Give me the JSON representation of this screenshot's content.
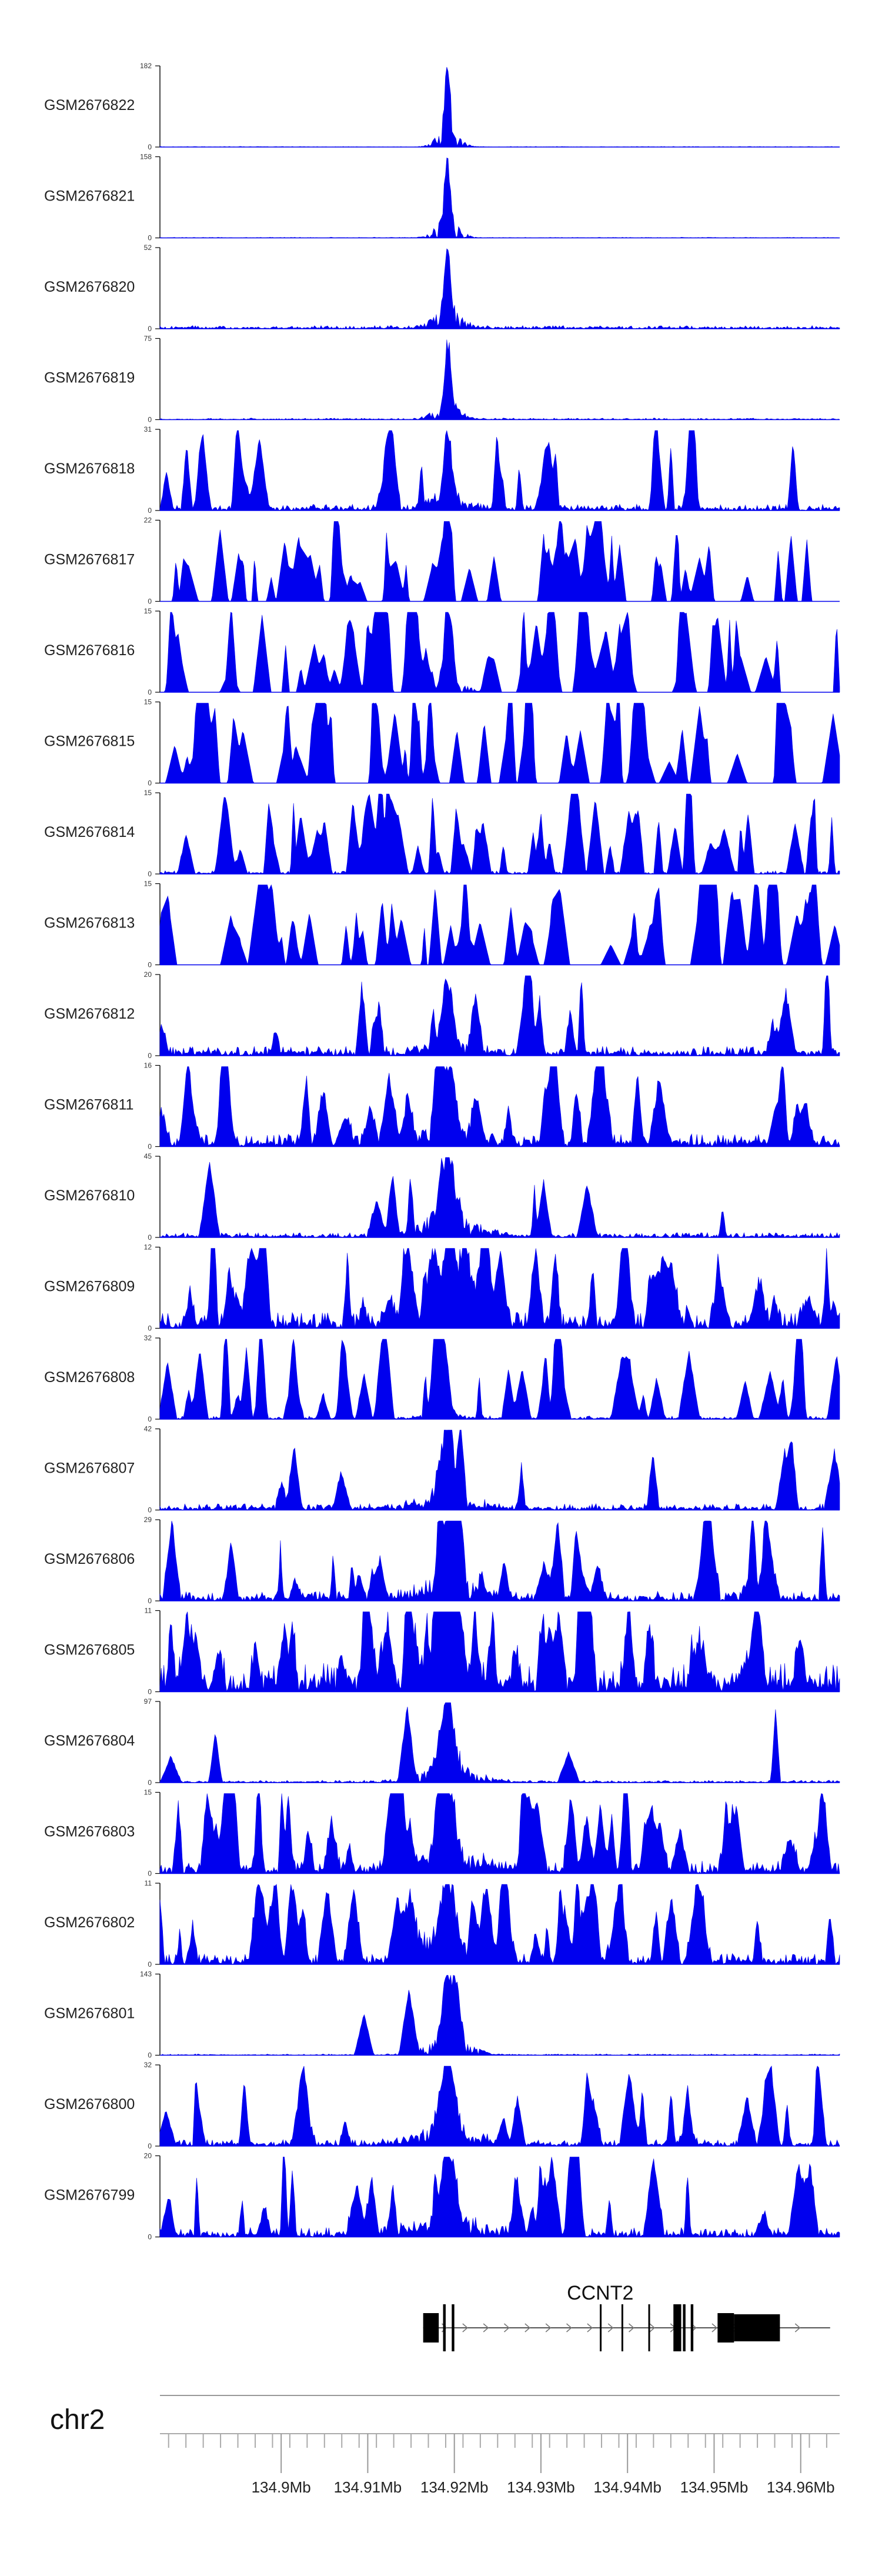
{
  "chart_data": {
    "type": "area",
    "title": "",
    "chromosome": "chr2",
    "x_range_mb": [
      134.886,
      134.9645
    ],
    "x_ticks_mb": [
      134.9,
      134.91,
      134.92,
      134.93,
      134.94,
      134.95,
      134.96
    ],
    "x_tick_labels": [
      "134.9Mb",
      "134.91Mb",
      "134.92Mb",
      "134.93Mb",
      "134.94Mb",
      "134.95Mb",
      "134.96Mb"
    ],
    "peak_center_mb": 134.9192,
    "colors": {
      "signal": "#0000ee",
      "axis": "#000000",
      "gene": "#000000"
    },
    "tracks": [
      {
        "name": "GSM2676822",
        "ymax": 182,
        "ymin": 0,
        "noise": 0.004,
        "peak": 1.0,
        "peak_width": 0.0003,
        "sparse": 0.0,
        "seed": 11
      },
      {
        "name": "GSM2676821",
        "ymax": 158,
        "ymin": 0,
        "noise": 0.004,
        "peak": 1.0,
        "peak_width": 0.00032,
        "sparse": 0.0,
        "seed": 12
      },
      {
        "name": "GSM2676820",
        "ymax": 52,
        "ymin": 0,
        "noise": 0.02,
        "peak": 0.95,
        "peak_width": 0.0004,
        "sparse": 0.0,
        "seed": 13
      },
      {
        "name": "GSM2676819",
        "ymax": 75,
        "ymin": 0,
        "noise": 0.01,
        "peak": 0.95,
        "peak_width": 0.00035,
        "sparse": 0.0,
        "seed": 14
      },
      {
        "name": "GSM2676818",
        "ymax": 31,
        "ymin": 0,
        "noise": 0.04,
        "peak": 0.9,
        "peak_width": 0.00045,
        "sparse": 0.25,
        "seed": 15
      },
      {
        "name": "GSM2676817",
        "ymax": 22,
        "ymin": 0,
        "noise": 0.0,
        "peak": 0.0,
        "peak_width": 0.0005,
        "sparse": 0.55,
        "seed": 16
      },
      {
        "name": "GSM2676816",
        "ymax": 15,
        "ymin": 0,
        "noise": 0.0,
        "peak": 0.6,
        "peak_width": 0.0005,
        "sparse": 0.6,
        "seed": 17
      },
      {
        "name": "GSM2676815",
        "ymax": 15,
        "ymin": 0,
        "noise": 0.0,
        "peak": 0.0,
        "peak_width": 0.0005,
        "sparse": 0.7,
        "seed": 18
      },
      {
        "name": "GSM2676814",
        "ymax": 15,
        "ymin": 0,
        "noise": 0.02,
        "peak": 0.0,
        "peak_width": 0.0005,
        "sparse": 0.55,
        "seed": 19
      },
      {
        "name": "GSM2676813",
        "ymax": 15,
        "ymin": 0,
        "noise": 0.0,
        "peak": 0.0,
        "peak_width": 0.0005,
        "sparse": 0.6,
        "seed": 20
      },
      {
        "name": "GSM2676812",
        "ymax": 20,
        "ymin": 0,
        "noise": 0.06,
        "peak": 0.95,
        "peak_width": 0.00055,
        "sparse": 0.2,
        "seed": 21
      },
      {
        "name": "GSM2676811",
        "ymax": 16,
        "ymin": 0,
        "noise": 0.08,
        "peak": 1.0,
        "peak_width": 0.0008,
        "sparse": 0.35,
        "seed": 22
      },
      {
        "name": "GSM2676810",
        "ymax": 45,
        "ymin": 0,
        "noise": 0.03,
        "peak": 1.0,
        "peak_width": 0.00085,
        "sparse": 0.1,
        "seed": 23
      },
      {
        "name": "GSM2676809",
        "ymax": 12,
        "ymin": 0,
        "noise": 0.1,
        "peak": 0.9,
        "peak_width": 0.0008,
        "sparse": 0.45,
        "seed": 24
      },
      {
        "name": "GSM2676808",
        "ymax": 32,
        "ymin": 0,
        "noise": 0.02,
        "peak": 0.2,
        "peak_width": 0.0006,
        "sparse": 0.45,
        "seed": 25
      },
      {
        "name": "GSM2676807",
        "ymax": 42,
        "ymin": 0,
        "noise": 0.04,
        "peak": 1.0,
        "peak_width": 0.00075,
        "sparse": 0.1,
        "seed": 26
      },
      {
        "name": "GSM2676806",
        "ymax": 29,
        "ymin": 0,
        "noise": 0.06,
        "peak": 0.95,
        "peak_width": 0.0008,
        "sparse": 0.3,
        "seed": 27
      },
      {
        "name": "GSM2676805",
        "ymax": 11,
        "ymin": 0,
        "noise": 0.18,
        "peak": 0.9,
        "peak_width": 0.0008,
        "sparse": 0.45,
        "seed": 28
      },
      {
        "name": "GSM2676804",
        "ymax": 97,
        "ymin": 0,
        "noise": 0.015,
        "peak": 1.0,
        "peak_width": 0.00075,
        "sparse": 0.05,
        "seed": 29
      },
      {
        "name": "GSM2676803",
        "ymax": 15,
        "ymin": 0,
        "noise": 0.08,
        "peak": 1.0,
        "peak_width": 0.00085,
        "sparse": 0.45,
        "seed": 30
      },
      {
        "name": "GSM2676802",
        "ymax": 11,
        "ymin": 0,
        "noise": 0.07,
        "peak": 1.0,
        "peak_width": 0.00085,
        "sparse": 0.5,
        "seed": 31
      },
      {
        "name": "GSM2676801",
        "ymax": 143,
        "ymin": 0,
        "noise": 0.008,
        "peak": 1.0,
        "peak_width": 0.0006,
        "sparse": 0.03,
        "seed": 32
      },
      {
        "name": "GSM2676800",
        "ymax": 32,
        "ymin": 0,
        "noise": 0.04,
        "peak": 1.0,
        "peak_width": 0.0008,
        "sparse": 0.25,
        "seed": 33
      },
      {
        "name": "GSM2676799",
        "ymax": 20,
        "ymin": 0,
        "noise": 0.06,
        "peak": 1.0,
        "peak_width": 0.00085,
        "sparse": 0.3,
        "seed": 34
      }
    ],
    "gene": {
      "name": "CCNT2",
      "strand": "+",
      "start_mb": 134.9164,
      "end_mb": 134.9634,
      "exons_mb": [
        [
          134.9164,
          134.9182
        ],
        [
          134.9187,
          134.919
        ],
        [
          134.9197,
          134.92
        ],
        [
          134.9368,
          134.937
        ],
        [
          134.9393,
          134.9395
        ],
        [
          134.9424,
          134.9426
        ],
        [
          134.9453,
          134.9462
        ],
        [
          134.9464,
          134.9467
        ],
        [
          134.9473,
          134.9476
        ],
        [
          134.9504,
          134.9523
        ],
        [
          134.9523,
          134.9576
        ]
      ]
    }
  }
}
